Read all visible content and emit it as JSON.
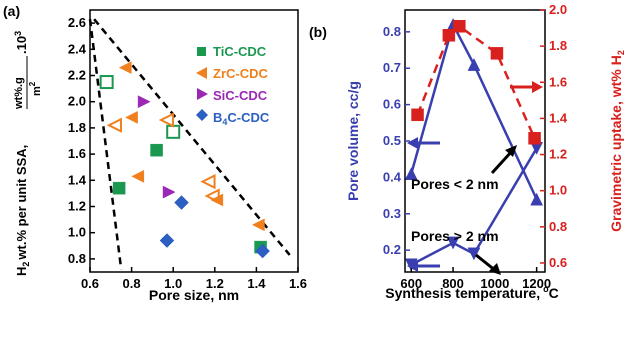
{
  "panel_a": {
    "panel_label": "(a)",
    "xlabel": "Pore size, nm",
    "ylabel_main": "wt.% per unit SSA,",
    "ylabel_h": "H",
    "ylabel_h_sub": "2",
    "ylabel_units": "wt%.g",
    "ylabel_units_den": "m",
    "ylabel_units_den_sup": "2",
    "ylabel_scale": ".10",
    "ylabel_scale_sup": "3",
    "legend": [
      "TiC-CDC",
      "ZrC-CDC",
      "SiC-CDC"
    ],
    "legend_b4c": {
      "pre": "B",
      "sub": "4",
      "post": "C-CDC"
    }
  },
  "panel_b": {
    "panel_label": "(b)",
    "xlabel": "Synthesis temperature,",
    "xlabel_unit": "°C",
    "ylabel_left": "Pore volume, cc/g",
    "ylabel_right": "Gravimetric uptake, wt%",
    "ylabel_right_h": "H",
    "ylabel_right_h_sub": "2",
    "annotations": [
      "Pores < 2 nm",
      "Pores > 2 nm"
    ]
  },
  "colors": {
    "TiC": "#1a9850",
    "ZrC": "#f07f1e",
    "SiC": "#9a28b5",
    "B4C": "#2b5fc1",
    "pore_volume": "#3a3fb0",
    "uptake": "#d8211e",
    "axis": "#000000"
  },
  "chart_data": [
    {
      "type": "scatter",
      "xlabel": "Pore size, nm",
      "ylabel": "H2 wt.% per unit SSA, wt%.g/m2 .10^3",
      "xlim": [
        0.6,
        1.6
      ],
      "ylim": [
        0.7,
        2.7
      ],
      "xticks": [
        "0.6",
        "0.8",
        "1.0",
        "1.2",
        "1.4",
        "1.6"
      ],
      "yticks": [
        "0.8",
        "1.0",
        "1.2",
        "1.4",
        "1.6",
        "1.8",
        "2.0",
        "2.2",
        "2.4",
        "2.6"
      ],
      "series": [
        {
          "name": "TiC-CDC",
          "marker": "square",
          "color": "#1a9850",
          "points": [
            {
              "x": 0.68,
              "y": 2.15,
              "filled": false
            },
            {
              "x": 0.74,
              "y": 1.34,
              "filled": true
            },
            {
              "x": 0.92,
              "y": 1.63,
              "filled": true
            },
            {
              "x": 1.0,
              "y": 1.77,
              "filled": false
            },
            {
              "x": 1.42,
              "y": 0.89,
              "filled": true
            }
          ]
        },
        {
          "name": "ZrC-CDC",
          "marker": "triangle-left",
          "color": "#f07f1e",
          "points": [
            {
              "x": 0.72,
              "y": 1.82,
              "filled": false
            },
            {
              "x": 0.77,
              "y": 2.26,
              "filled": true
            },
            {
              "x": 0.8,
              "y": 1.88,
              "filled": true
            },
            {
              "x": 0.83,
              "y": 1.43,
              "filled": true
            },
            {
              "x": 0.97,
              "y": 1.86,
              "filled": false
            },
            {
              "x": 1.17,
              "y": 1.39,
              "filled": false
            },
            {
              "x": 1.19,
              "y": 1.28,
              "filled": false
            },
            {
              "x": 1.21,
              "y": 1.25,
              "filled": true
            },
            {
              "x": 1.41,
              "y": 1.06,
              "filled": true
            }
          ]
        },
        {
          "name": "SiC-CDC",
          "marker": "triangle-right",
          "color": "#9a28b5",
          "points": [
            {
              "x": 0.86,
              "y": 2.0,
              "filled": true
            },
            {
              "x": 0.98,
              "y": 1.31,
              "filled": true
            }
          ]
        },
        {
          "name": "B4C-CDC",
          "marker": "diamond",
          "color": "#2b5fc1",
          "points": [
            {
              "x": 0.97,
              "y": 0.94,
              "filled": true
            },
            {
              "x": 1.04,
              "y": 1.23,
              "filled": true
            },
            {
              "x": 1.43,
              "y": 0.86,
              "filled": true
            }
          ]
        }
      ],
      "guide_lines": [
        {
          "style": "dashed",
          "from": {
            "x": 0.6,
            "y": 2.63
          },
          "to": {
            "x": 0.75,
            "y": 0.72
          }
        },
        {
          "style": "dashed",
          "from": {
            "x": 0.62,
            "y": 2.63
          },
          "to": {
            "x": 1.56,
            "y": 0.83
          }
        }
      ]
    },
    {
      "type": "line",
      "xlabel": "Synthesis temperature, °C",
      "x": [
        600,
        800,
        900,
        1200
      ],
      "xlim": [
        570,
        1240
      ],
      "xticks": [
        "600",
        "800",
        "1000",
        "1200"
      ],
      "y_left": {
        "label": "Pore volume, cc/g",
        "lim": [
          0.14,
          0.86
        ],
        "ticks": [
          "0.2",
          "0.3",
          "0.4",
          "0.5",
          "0.6",
          "0.7",
          "0.8"
        ]
      },
      "y_right": {
        "label": "Gravimetric uptake, wt% H2",
        "lim": [
          0.55,
          2.0
        ],
        "ticks": [
          "0.6",
          "0.8",
          "1.0",
          "1.2",
          "1.4",
          "1.6",
          "1.8",
          "2.0"
        ]
      },
      "series": [
        {
          "name": "Pores < 2 nm",
          "axis": "left",
          "marker": "triangle-up",
          "color": "#3a3fb0",
          "x": [
            600,
            800,
            900,
            1200
          ],
          "y": [
            0.41,
            0.82,
            0.71,
            0.34
          ]
        },
        {
          "name": "Pores > 2 nm",
          "axis": "left",
          "marker": "triangle-down",
          "color": "#3a3fb0",
          "x": [
            600,
            800,
            900,
            1200
          ],
          "y": [
            0.16,
            0.22,
            0.19,
            0.48
          ]
        },
        {
          "name": "Gravimetric uptake",
          "axis": "right",
          "marker": "square",
          "style": "dashed",
          "color": "#d8211e",
          "x": [
            630,
            780,
            830,
            1010,
            1190
          ],
          "y": [
            1.42,
            1.86,
            1.91,
            1.76,
            1.29
          ]
        }
      ]
    }
  ]
}
